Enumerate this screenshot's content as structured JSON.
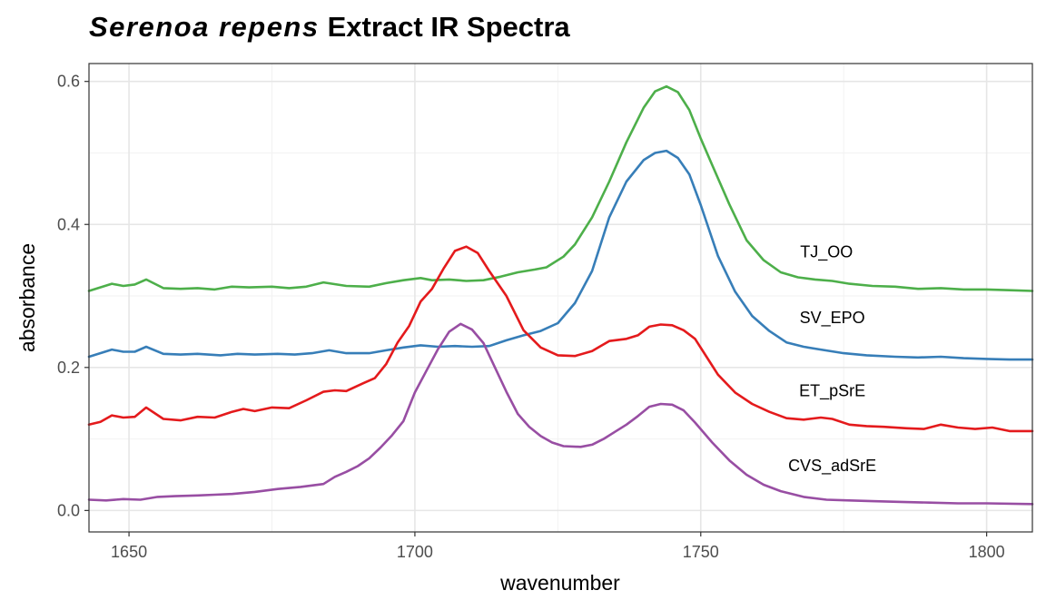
{
  "chart_data": {
    "type": "line",
    "title_italic": "Serenoa repens",
    "title_rest": "Extract IR Spectra",
    "xlabel": "wavenumber",
    "ylabel": "absorbance",
    "xlim": [
      1643,
      1808
    ],
    "ylim": [
      -0.03,
      0.625
    ],
    "x_ticks": [
      1650,
      1700,
      1750,
      1800
    ],
    "y_ticks": [
      0.0,
      0.2,
      0.4,
      0.6
    ],
    "y_tick_labels": [
      "0.0",
      "0.2",
      "0.4",
      "0.6"
    ],
    "grid": true,
    "series": [
      {
        "name": "TJ_OO",
        "color": "#4daf4a",
        "label_at": [
          1772,
          0.354
        ],
        "points": [
          [
            1643,
            0.307
          ],
          [
            1647,
            0.317
          ],
          [
            1649,
            0.314
          ],
          [
            1651,
            0.316
          ],
          [
            1653,
            0.323
          ],
          [
            1656,
            0.311
          ],
          [
            1659,
            0.31
          ],
          [
            1662,
            0.311
          ],
          [
            1665,
            0.309
          ],
          [
            1668,
            0.313
          ],
          [
            1671,
            0.312
          ],
          [
            1675,
            0.313
          ],
          [
            1678,
            0.311
          ],
          [
            1681,
            0.313
          ],
          [
            1684,
            0.319
          ],
          [
            1688,
            0.314
          ],
          [
            1692,
            0.313
          ],
          [
            1695,
            0.318
          ],
          [
            1698,
            0.322
          ],
          [
            1701,
            0.325
          ],
          [
            1703,
            0.322
          ],
          [
            1706,
            0.323
          ],
          [
            1709,
            0.321
          ],
          [
            1712,
            0.322
          ],
          [
            1715,
            0.327
          ],
          [
            1718,
            0.333
          ],
          [
            1721,
            0.337
          ],
          [
            1723,
            0.34
          ],
          [
            1726,
            0.355
          ],
          [
            1728,
            0.372
          ],
          [
            1731,
            0.41
          ],
          [
            1734,
            0.46
          ],
          [
            1737,
            0.515
          ],
          [
            1740,
            0.563
          ],
          [
            1742,
            0.586
          ],
          [
            1744,
            0.593
          ],
          [
            1746,
            0.585
          ],
          [
            1748,
            0.56
          ],
          [
            1750,
            0.52
          ],
          [
            1752,
            0.483
          ],
          [
            1755,
            0.428
          ],
          [
            1758,
            0.378
          ],
          [
            1761,
            0.35
          ],
          [
            1764,
            0.333
          ],
          [
            1767,
            0.326
          ],
          [
            1770,
            0.323
          ],
          [
            1773,
            0.321
          ],
          [
            1776,
            0.317
          ],
          [
            1780,
            0.314
          ],
          [
            1784,
            0.313
          ],
          [
            1788,
            0.31
          ],
          [
            1792,
            0.311
          ],
          [
            1796,
            0.309
          ],
          [
            1800,
            0.309
          ],
          [
            1804,
            0.308
          ],
          [
            1808,
            0.307
          ]
        ]
      },
      {
        "name": "SV_EPO",
        "color": "#377eb8",
        "label_at": [
          1773,
          0.262
        ],
        "points": [
          [
            1643,
            0.215
          ],
          [
            1647,
            0.225
          ],
          [
            1649,
            0.222
          ],
          [
            1651,
            0.222
          ],
          [
            1653,
            0.229
          ],
          [
            1656,
            0.219
          ],
          [
            1659,
            0.218
          ],
          [
            1662,
            0.219
          ],
          [
            1666,
            0.217
          ],
          [
            1669,
            0.219
          ],
          [
            1672,
            0.218
          ],
          [
            1676,
            0.219
          ],
          [
            1679,
            0.218
          ],
          [
            1682,
            0.22
          ],
          [
            1685,
            0.224
          ],
          [
            1688,
            0.22
          ],
          [
            1692,
            0.22
          ],
          [
            1695,
            0.224
          ],
          [
            1698,
            0.228
          ],
          [
            1701,
            0.231
          ],
          [
            1704,
            0.229
          ],
          [
            1707,
            0.23
          ],
          [
            1710,
            0.229
          ],
          [
            1713,
            0.23
          ],
          [
            1716,
            0.238
          ],
          [
            1719,
            0.245
          ],
          [
            1722,
            0.251
          ],
          [
            1725,
            0.262
          ],
          [
            1728,
            0.29
          ],
          [
            1731,
            0.335
          ],
          [
            1734,
            0.41
          ],
          [
            1737,
            0.46
          ],
          [
            1740,
            0.49
          ],
          [
            1742,
            0.5
          ],
          [
            1744,
            0.503
          ],
          [
            1746,
            0.493
          ],
          [
            1748,
            0.47
          ],
          [
            1750,
            0.427
          ],
          [
            1753,
            0.356
          ],
          [
            1756,
            0.306
          ],
          [
            1759,
            0.272
          ],
          [
            1762,
            0.251
          ],
          [
            1765,
            0.235
          ],
          [
            1768,
            0.229
          ],
          [
            1771,
            0.225
          ],
          [
            1775,
            0.22
          ],
          [
            1779,
            0.217
          ],
          [
            1784,
            0.215
          ],
          [
            1788,
            0.214
          ],
          [
            1792,
            0.215
          ],
          [
            1796,
            0.213
          ],
          [
            1800,
            0.212
          ],
          [
            1804,
            0.211
          ],
          [
            1808,
            0.211
          ]
        ]
      },
      {
        "name": "ET_pSrE",
        "color": "#e41a1c",
        "label_at": [
          1773,
          0.16
        ],
        "points": [
          [
            1643,
            0.12
          ],
          [
            1645,
            0.124
          ],
          [
            1647,
            0.133
          ],
          [
            1649,
            0.13
          ],
          [
            1651,
            0.131
          ],
          [
            1653,
            0.144
          ],
          [
            1656,
            0.128
          ],
          [
            1659,
            0.126
          ],
          [
            1662,
            0.131
          ],
          [
            1665,
            0.13
          ],
          [
            1668,
            0.138
          ],
          [
            1670,
            0.142
          ],
          [
            1672,
            0.139
          ],
          [
            1675,
            0.144
          ],
          [
            1678,
            0.143
          ],
          [
            1681,
            0.154
          ],
          [
            1684,
            0.166
          ],
          [
            1686,
            0.168
          ],
          [
            1688,
            0.167
          ],
          [
            1691,
            0.178
          ],
          [
            1693,
            0.185
          ],
          [
            1695,
            0.205
          ],
          [
            1697,
            0.235
          ],
          [
            1699,
            0.258
          ],
          [
            1701,
            0.292
          ],
          [
            1703,
            0.31
          ],
          [
            1705,
            0.338
          ],
          [
            1707,
            0.363
          ],
          [
            1709,
            0.369
          ],
          [
            1711,
            0.36
          ],
          [
            1713,
            0.335
          ],
          [
            1716,
            0.3
          ],
          [
            1719,
            0.252
          ],
          [
            1722,
            0.228
          ],
          [
            1725,
            0.217
          ],
          [
            1728,
            0.216
          ],
          [
            1731,
            0.223
          ],
          [
            1734,
            0.237
          ],
          [
            1737,
            0.24
          ],
          [
            1739,
            0.245
          ],
          [
            1741,
            0.257
          ],
          [
            1743,
            0.26
          ],
          [
            1745,
            0.259
          ],
          [
            1747,
            0.252
          ],
          [
            1749,
            0.24
          ],
          [
            1751,
            0.215
          ],
          [
            1753,
            0.19
          ],
          [
            1756,
            0.165
          ],
          [
            1759,
            0.149
          ],
          [
            1762,
            0.138
          ],
          [
            1765,
            0.129
          ],
          [
            1768,
            0.127
          ],
          [
            1771,
            0.13
          ],
          [
            1773,
            0.128
          ],
          [
            1776,
            0.12
          ],
          [
            1779,
            0.118
          ],
          [
            1782,
            0.117
          ],
          [
            1786,
            0.115
          ],
          [
            1789,
            0.114
          ],
          [
            1792,
            0.12
          ],
          [
            1795,
            0.116
          ],
          [
            1798,
            0.114
          ],
          [
            1801,
            0.116
          ],
          [
            1804,
            0.111
          ],
          [
            1808,
            0.111
          ]
        ]
      },
      {
        "name": "CVS_adSrE",
        "color": "#984ea3",
        "label_at": [
          1773,
          0.055
        ],
        "points": [
          [
            1643,
            0.015
          ],
          [
            1646,
            0.014
          ],
          [
            1649,
            0.016
          ],
          [
            1652,
            0.015
          ],
          [
            1655,
            0.019
          ],
          [
            1658,
            0.02
          ],
          [
            1662,
            0.021
          ],
          [
            1665,
            0.022
          ],
          [
            1668,
            0.023
          ],
          [
            1672,
            0.026
          ],
          [
            1676,
            0.03
          ],
          [
            1680,
            0.033
          ],
          [
            1684,
            0.037
          ],
          [
            1686,
            0.047
          ],
          [
            1688,
            0.054
          ],
          [
            1690,
            0.062
          ],
          [
            1692,
            0.073
          ],
          [
            1694,
            0.088
          ],
          [
            1696,
            0.105
          ],
          [
            1698,
            0.125
          ],
          [
            1700,
            0.165
          ],
          [
            1702,
            0.195
          ],
          [
            1704,
            0.225
          ],
          [
            1706,
            0.25
          ],
          [
            1708,
            0.261
          ],
          [
            1710,
            0.253
          ],
          [
            1712,
            0.234
          ],
          [
            1714,
            0.2
          ],
          [
            1716,
            0.166
          ],
          [
            1718,
            0.135
          ],
          [
            1720,
            0.117
          ],
          [
            1722,
            0.104
          ],
          [
            1724,
            0.095
          ],
          [
            1726,
            0.09
          ],
          [
            1729,
            0.089
          ],
          [
            1731,
            0.092
          ],
          [
            1733,
            0.1
          ],
          [
            1735,
            0.11
          ],
          [
            1737,
            0.12
          ],
          [
            1739,
            0.132
          ],
          [
            1741,
            0.145
          ],
          [
            1743,
            0.149
          ],
          [
            1745,
            0.148
          ],
          [
            1747,
            0.14
          ],
          [
            1749,
            0.123
          ],
          [
            1752,
            0.095
          ],
          [
            1755,
            0.07
          ],
          [
            1758,
            0.05
          ],
          [
            1761,
            0.036
          ],
          [
            1764,
            0.027
          ],
          [
            1768,
            0.019
          ],
          [
            1772,
            0.015
          ],
          [
            1776,
            0.014
          ],
          [
            1780,
            0.013
          ],
          [
            1785,
            0.012
          ],
          [
            1790,
            0.011
          ],
          [
            1795,
            0.01
          ],
          [
            1800,
            0.01
          ],
          [
            1808,
            0.009
          ]
        ]
      }
    ]
  }
}
